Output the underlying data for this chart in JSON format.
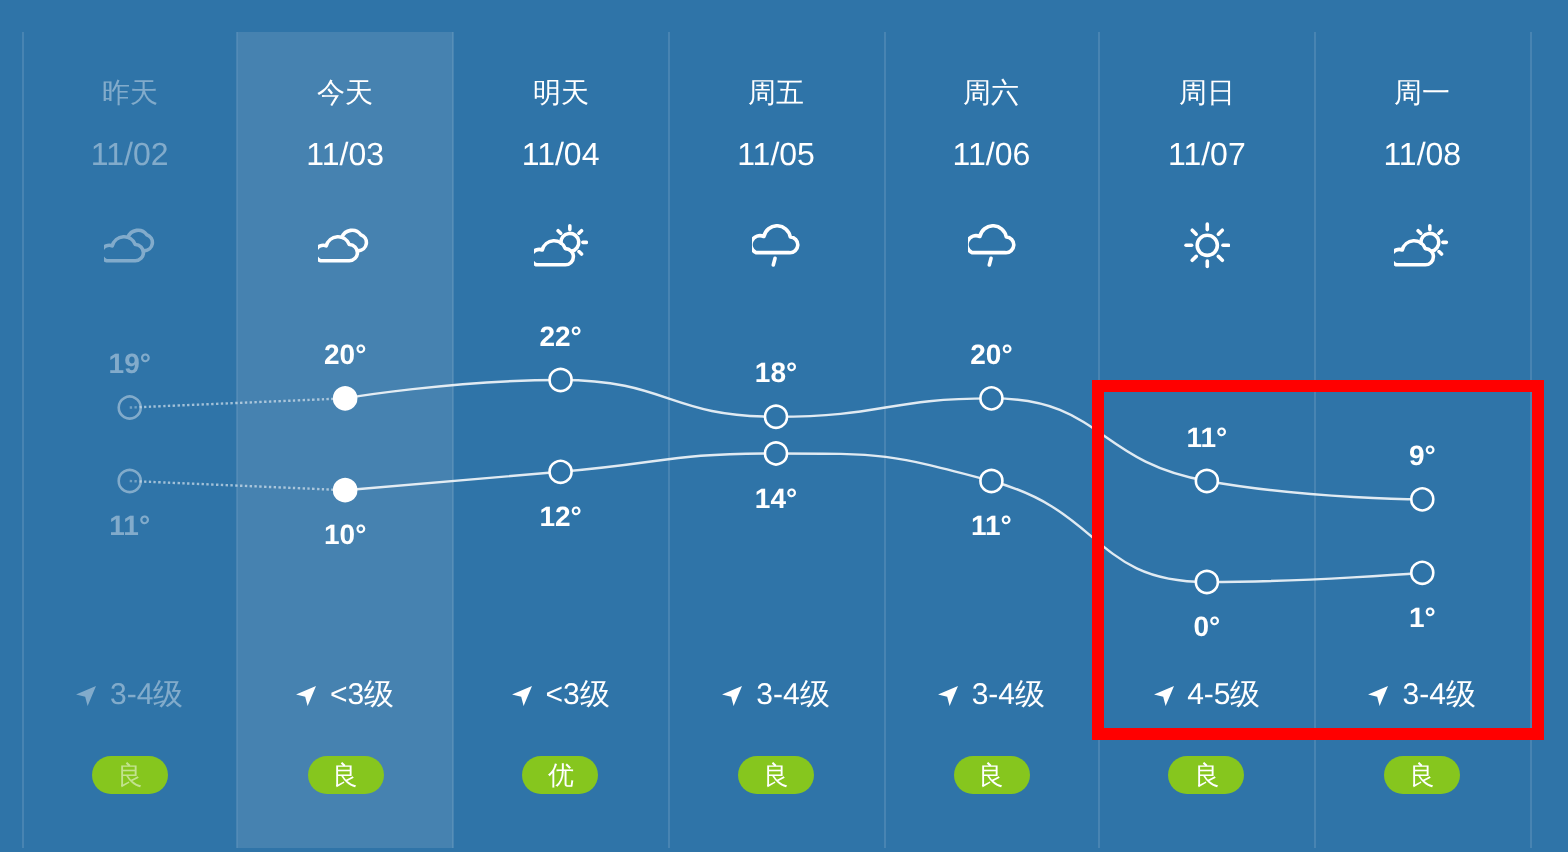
{
  "chart_data": {
    "type": "line",
    "categories": [
      "昨天\n11/02",
      "今天\n11/03",
      "明天\n11/04",
      "周五\n11/05",
      "周六\n11/06",
      "周日\n11/07",
      "周一\n11/08"
    ],
    "series": [
      {
        "color": "#ffffff",
        "values": [
          19,
          20,
          22,
          18,
          20,
          11,
          9
        ],
        "value_labels": [
          "19°",
          "20°",
          "22°",
          "18°",
          "20°",
          "11°",
          "9°"
        ]
      },
      {
        "color": "#ffffff",
        "values": [
          11,
          10,
          12,
          14,
          11,
          0,
          1
        ],
        "value_labels": [
          "11°",
          "10°",
          "12°",
          "14°",
          "11°",
          "0°",
          "1°"
        ]
      }
    ],
    "marker": "circle",
    "line_style": "solid",
    "grid": "x",
    "tick_labels": "x",
    "bands": [
      {
        "axis": "x",
        "from": "今天\n11/03",
        "to": "今天\n11/03",
        "color": "#4682b0"
      }
    ],
    "annotations": [
      "3-4级",
      "<3级",
      "<3级",
      "3-4级",
      "3-4级",
      "4-5级",
      "3-4级",
      "良",
      "良",
      "优",
      "良",
      "良",
      "良",
      "良"
    ]
  }
}
